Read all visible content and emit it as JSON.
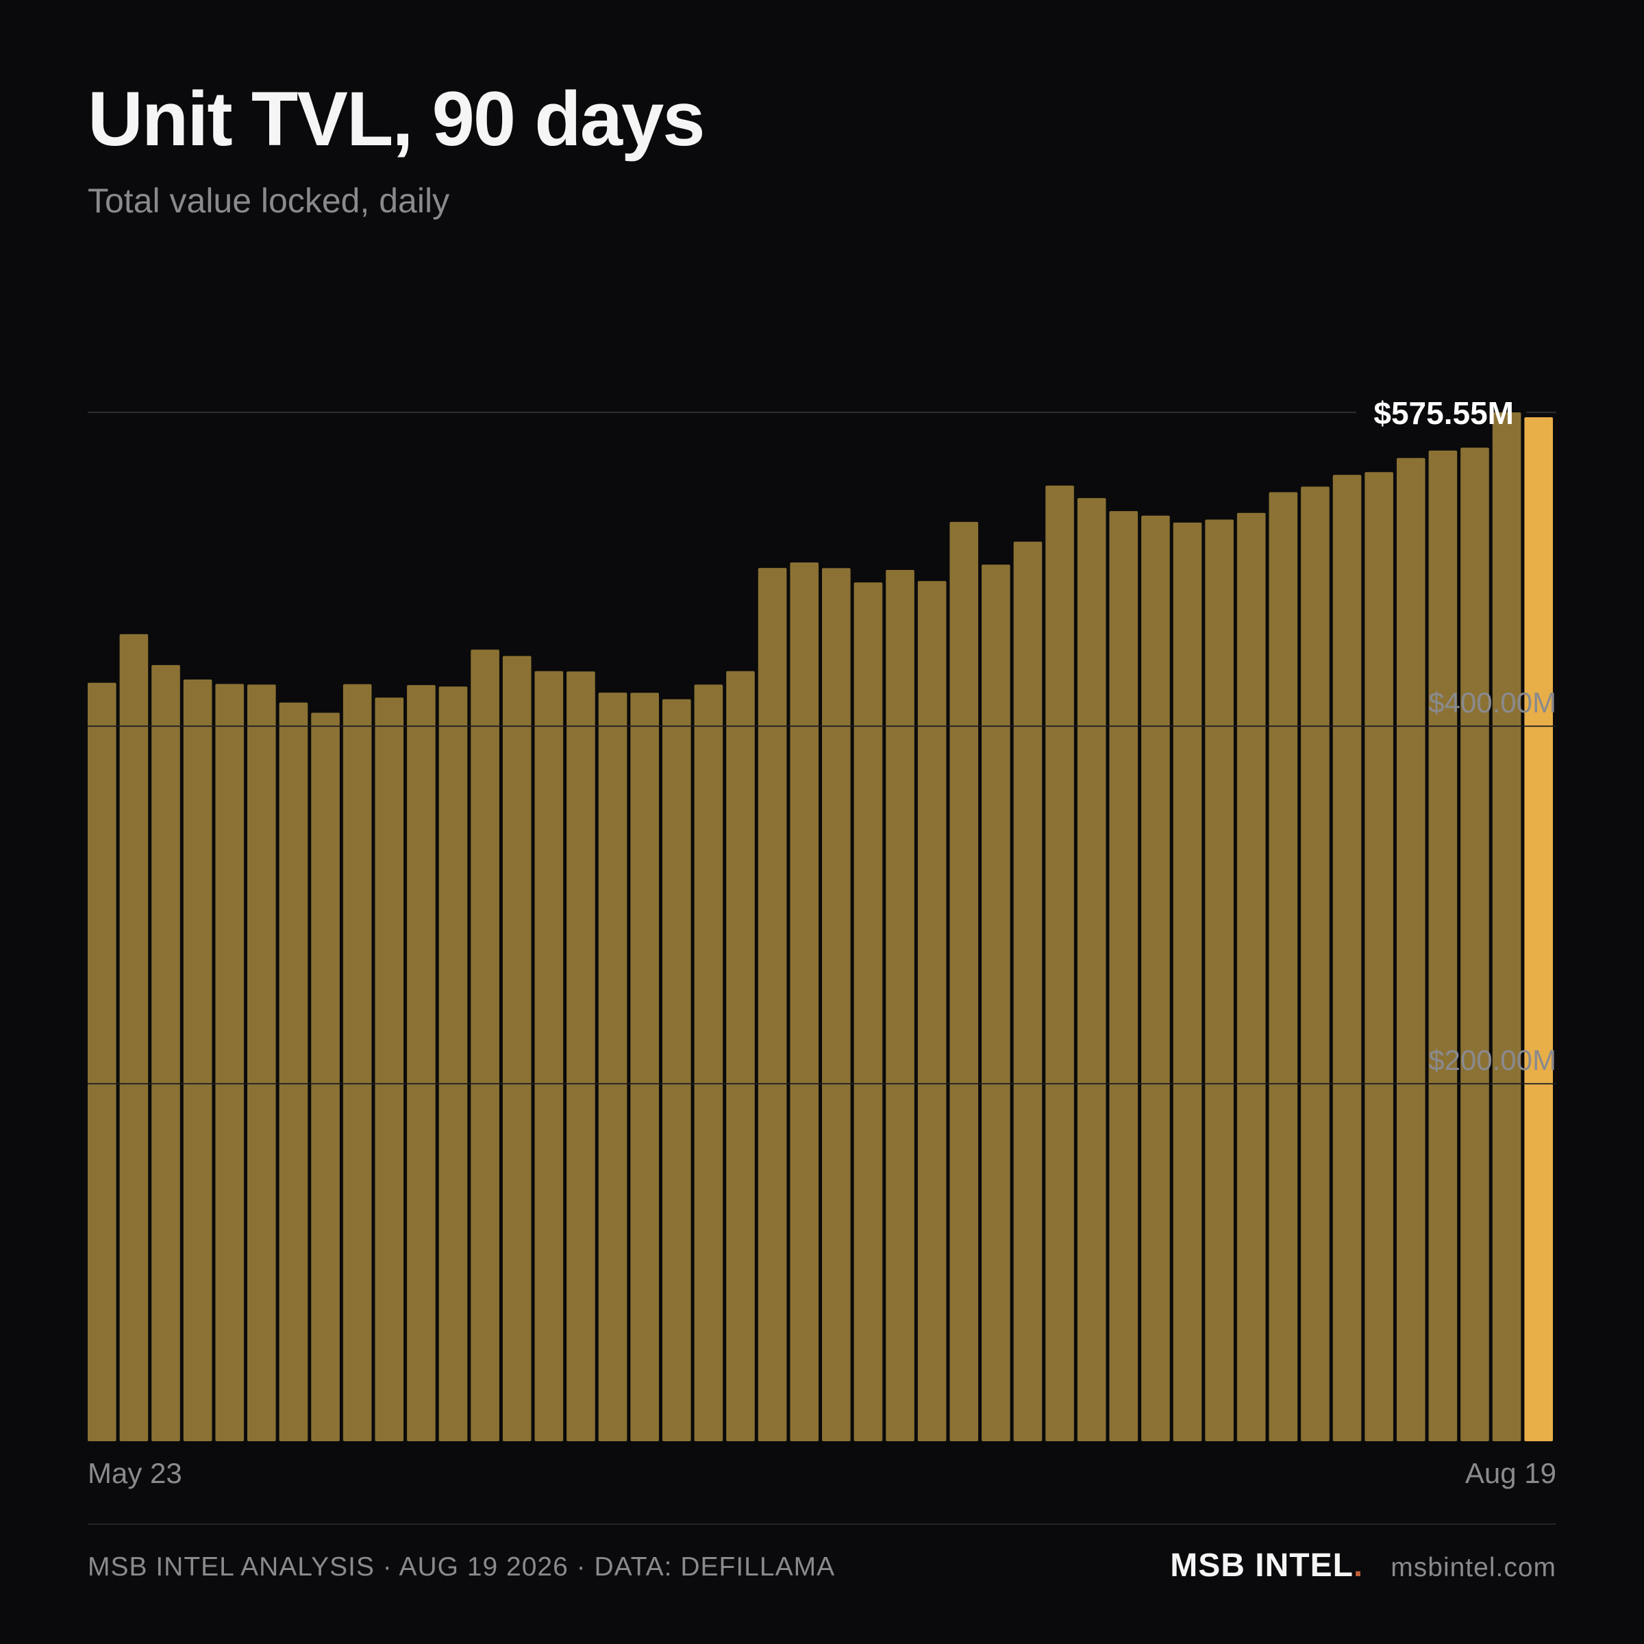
{
  "header": {
    "title": "Unit TVL, 90 days",
    "subtitle": "Total value locked, daily"
  },
  "chart_data": {
    "type": "bar",
    "title": "Unit TVL, 90 days",
    "subtitle": "Total value locked, daily",
    "xlabel": "",
    "ylabel": "",
    "x_tick_labels": [
      "May 23",
      "Aug 19"
    ],
    "y_tick_labels": [
      "$200.00M",
      "$400.00M"
    ],
    "y_ticks": [
      200,
      400
    ],
    "ylim": [
      0,
      575.55
    ],
    "grid": true,
    "peak_label": "$575.55M",
    "peak_value": 575.55,
    "highlight_index": 45,
    "colors": {
      "bar": "#8b7234",
      "highlight": "#e8ae48",
      "grid": "#2e2e32",
      "tick_text": "#8a8a8e",
      "peak_text": "#ffffff"
    },
    "values": [
      424.3,
      451.5,
      434.2,
      426.1,
      423.6,
      423.3,
      413.2,
      407.5,
      423.5,
      416.0,
      423.0,
      422.2,
      442.8,
      439.3,
      430.8,
      430.6,
      418.8,
      418.7,
      415.1,
      423.3,
      430.8,
      488.5,
      491.6,
      488.4,
      480.4,
      487.4,
      481.2,
      514.3,
      490.4,
      503.2,
      534.6,
      527.6,
      520.3,
      517.8,
      513.9,
      515.6,
      519.3,
      530.9,
      534.0,
      540.6,
      542.1,
      550.0,
      554.2,
      555.8,
      575.55,
      572.8
    ]
  },
  "x_axis": {
    "start_label": "May 23",
    "end_label": "Aug 19"
  },
  "footer": {
    "credit": "MSB INTEL ANALYSIS · AUG 19 2026 · DATA: DEFILLAMA",
    "brand_name": "MSB INTEL",
    "brand_dot": ".",
    "brand_url": "msbintel.com"
  }
}
